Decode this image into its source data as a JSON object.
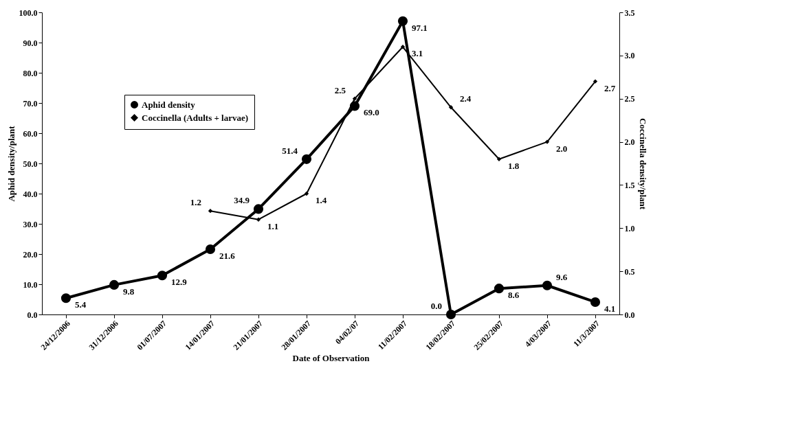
{
  "chart_data": {
    "type": "line",
    "xlabel": "Date of Observation",
    "ylabel": "Aphid density/plant",
    "y2label": "Coccinella density/plant",
    "categories": [
      "24/12/2006",
      "31/12/2006",
      "01/07/2007",
      "14/01/2007",
      "21/01/2007",
      "28/01/2007",
      "04/02/07",
      "11/02/2007",
      "18/02/2007",
      "25/02/2007",
      "4/03/2007",
      "11/3/2007"
    ],
    "series": [
      {
        "name": "Aphid density",
        "color": "#000000",
        "marker": "circle",
        "values": [
          5.4,
          9.8,
          12.9,
          21.6,
          34.9,
          51.4,
          69.0,
          97.1,
          0.0,
          8.6,
          9.6,
          4.1
        ],
        "value_labels": [
          "5.4",
          "9.8",
          "12.9",
          "21.6",
          "34.9",
          "51.4",
          "69.0",
          "97.1",
          "0.0",
          "8.6",
          "9.6",
          "4.1"
        ]
      },
      {
        "name": "Coccinella (Adults + larvae)",
        "color": "#000000",
        "marker": "diamond",
        "axis": "y2",
        "values": [
          null,
          null,
          null,
          1.2,
          1.1,
          1.4,
          2.5,
          3.1,
          2.4,
          1.8,
          2.0,
          2.7
        ],
        "value_labels": [
          null,
          null,
          null,
          "1.2",
          "1.1",
          "1.4",
          "2.5",
          "3.1",
          "2.4",
          "1.8",
          "2.0",
          "2.7"
        ]
      }
    ],
    "ylim": [
      0,
      100
    ],
    "yticks": [
      {
        "value": 0,
        "label": "0.0"
      },
      {
        "value": 10,
        "label": "10.0"
      },
      {
        "value": 20,
        "label": "20.0"
      },
      {
        "value": 30,
        "label": "30.0"
      },
      {
        "value": 40,
        "label": "40.0"
      },
      {
        "value": 50,
        "label": "50.0"
      },
      {
        "value": 60,
        "label": "60.0"
      },
      {
        "value": 70,
        "label": "70.0"
      },
      {
        "value": 80,
        "label": "80.0"
      },
      {
        "value": 90,
        "label": "90.0"
      },
      {
        "value": 100,
        "label": "100.0"
      }
    ],
    "y2lim": [
      0,
      3.5
    ],
    "y2ticks": [
      {
        "value": 0,
        "label": "0.0"
      },
      {
        "value": 0.5,
        "label": "0.5"
      },
      {
        "value": 1,
        "label": "1.0"
      },
      {
        "value": 1.5,
        "label": "1.5"
      },
      {
        "value": 2,
        "label": "2.0"
      },
      {
        "value": 2.5,
        "label": "2.5"
      },
      {
        "value": 3,
        "label": "3.0"
      },
      {
        "value": 3.5,
        "label": "3.5"
      }
    ],
    "legend": "top left",
    "grid": false
  }
}
